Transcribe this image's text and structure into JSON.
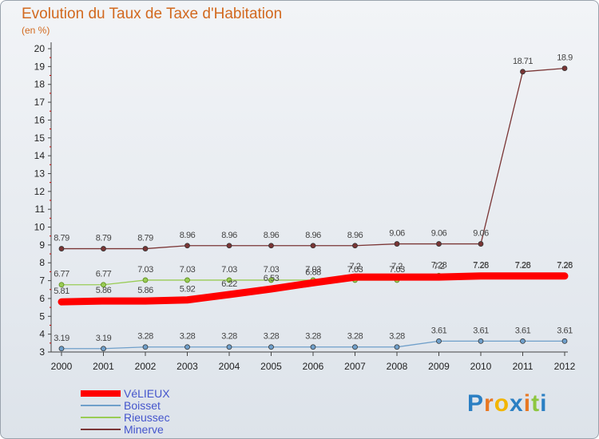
{
  "chart_data": {
    "type": "line",
    "title": "Evolution du Taux de Taxe d'Habitation",
    "subtitle": "(en %)",
    "xlabel": "",
    "ylabel": "",
    "ylim": [
      3,
      20
    ],
    "yticks": [
      3,
      4,
      5,
      6,
      7,
      8,
      9,
      10,
      11,
      12,
      13,
      14,
      15,
      16,
      17,
      18,
      19,
      20
    ],
    "x": [
      "2000",
      "2001",
      "2002",
      "2003",
      "2004",
      "2005",
      "2006",
      "2007",
      "2008",
      "2009",
      "2010",
      "2011",
      "2012"
    ],
    "grid": false,
    "legend_position": "bottom-left",
    "series": [
      {
        "name": "VéLIEUX",
        "color": "#ff0000",
        "values": [
          5.81,
          5.86,
          5.86,
          5.92,
          6.22,
          6.53,
          6.88,
          7.2,
          7.2,
          7.2,
          7.26,
          7.26,
          7.26
        ],
        "labels": [
          "5.81",
          "5.86",
          "5.86",
          "5.92",
          "6.22",
          "6.53",
          "6.88",
          "7.2",
          "7.2",
          "7.2",
          "7.26",
          "7.26",
          "7.26"
        ]
      },
      {
        "name": "Boisset",
        "color": "#6f9fca",
        "values": [
          3.19,
          3.19,
          3.28,
          3.28,
          3.28,
          3.28,
          3.28,
          3.28,
          3.28,
          3.61,
          3.61,
          3.61,
          3.61
        ],
        "labels": [
          "3.19",
          "3.19",
          "3.28",
          "3.28",
          "3.28",
          "3.28",
          "3.28",
          "3.28",
          "3.28",
          "3.61",
          "3.61",
          "3.61",
          "3.61"
        ]
      },
      {
        "name": "Rieussec",
        "color": "#99cc55",
        "values": [
          6.77,
          6.77,
          7.03,
          7.03,
          7.03,
          7.03,
          7.03,
          7.03,
          7.03,
          7.28,
          7.28,
          7.28,
          7.28
        ],
        "labels": [
          "6.77",
          "6.77",
          "7.03",
          "7.03",
          "7.03",
          "7.03",
          "7.03",
          "7.03",
          "7.03",
          "7.28",
          "7.28",
          "7.28",
          "7.28"
        ]
      },
      {
        "name": "Minerve",
        "color": "#7a3535",
        "values": [
          8.79,
          8.79,
          8.79,
          8.96,
          8.96,
          8.96,
          8.96,
          8.96,
          9.06,
          9.06,
          9.06,
          18.71,
          18.9
        ],
        "labels": [
          "8.79",
          "8.79",
          "8.79",
          "8.96",
          "8.96",
          "8.96",
          "8.96",
          "8.96",
          "9.06",
          "9.06",
          "9.06",
          "18.71",
          "18.9"
        ]
      }
    ]
  },
  "legend": {
    "items": [
      {
        "label": "VéLIEUX",
        "color": "#ff0000"
      },
      {
        "label": "Boisset",
        "color": "#6f9fca"
      },
      {
        "label": "Rieussec",
        "color": "#99cc55"
      },
      {
        "label": "Minerve",
        "color": "#7a3535"
      }
    ]
  },
  "logo": {
    "letters": [
      "P",
      "r",
      "o",
      "x",
      "i",
      "t",
      "i"
    ],
    "colors": [
      "#2b7fc3",
      "#e87722",
      "#f2b500",
      "#2b7fc3",
      "#e87722",
      "#8dc63f",
      "#2b7fc3"
    ]
  }
}
